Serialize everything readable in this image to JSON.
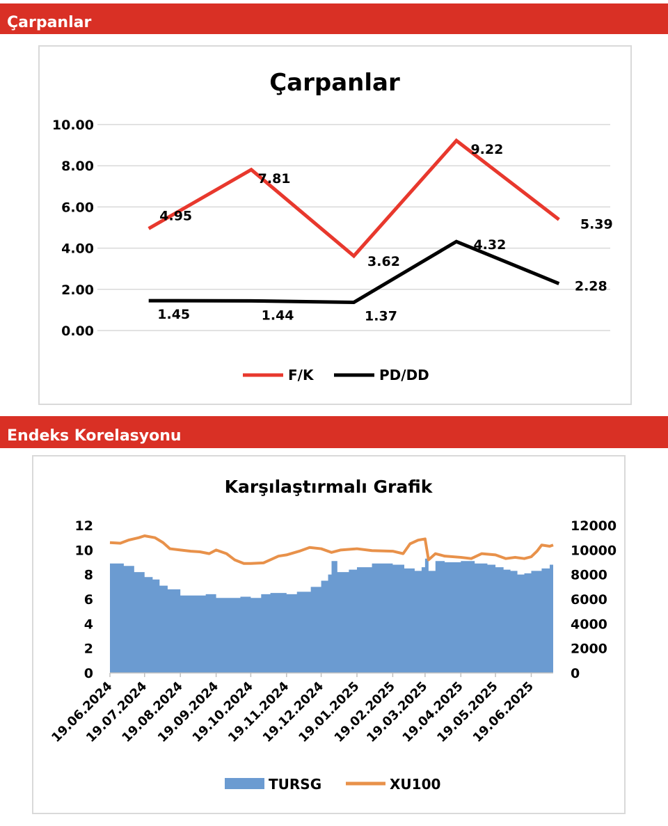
{
  "sections": {
    "multiples_header": "Çarpanlar",
    "index_header": "Endeks Korelasyonu"
  },
  "colors": {
    "header_bg": "#d93025",
    "fk_line": "#e8382d",
    "pddd_line": "#000000",
    "tursg_area": "#6b9bd1",
    "xu100_line": "#e8914a"
  },
  "chart_data": [
    {
      "type": "line",
      "title": "Çarpanlar",
      "ylim": [
        0,
        10
      ],
      "y_ticks": [
        "0.00",
        "2.00",
        "4.00",
        "6.00",
        "8.00",
        "10.00"
      ],
      "grid": true,
      "legend": "bottom",
      "series": [
        {
          "name": "F/K",
          "values": [
            4.95,
            7.81,
            3.62,
            9.22,
            5.39
          ],
          "labels": [
            "4.95",
            "7.81",
            "3.62",
            "9.22",
            "5.39"
          ]
        },
        {
          "name": "PD/DD",
          "values": [
            1.45,
            1.44,
            1.37,
            4.32,
            2.28
          ],
          "labels": [
            "1.45",
            "1.44",
            "1.37",
            "4.32",
            "2.28"
          ]
        }
      ]
    },
    {
      "type": "area",
      "title": "Karşılaştırmalı Grafik",
      "ylim_left": [
        0,
        12
      ],
      "ylim_right": [
        0,
        12000
      ],
      "y_ticks_left": [
        "0",
        "2",
        "4",
        "6",
        "8",
        "10",
        "12"
      ],
      "y_ticks_right": [
        "0",
        "2000",
        "4000",
        "6000",
        "8000",
        "10000",
        "12000"
      ],
      "x_ticks": [
        "19.06.2024",
        "19.07.2024",
        "19.08.2024",
        "19.09.2024",
        "19.10.2024",
        "19.11.2024",
        "19.12.2024",
        "19.01.2025",
        "19.02.2025",
        "19.03.2025",
        "19.04.2025",
        "19.05.2025",
        "19.06.2025"
      ],
      "legend": "bottom",
      "series": [
        {
          "name": "TURSG",
          "axis": "left",
          "type": "area",
          "points": [
            [
              "19.06.2024",
              8.9
            ],
            [
              "01.07.2024",
              8.7
            ],
            [
              "10.07.2024",
              8.2
            ],
            [
              "19.07.2024",
              7.8
            ],
            [
              "26.07.2024",
              7.6
            ],
            [
              "01.08.2024",
              7.1
            ],
            [
              "08.08.2024",
              6.8
            ],
            [
              "19.08.2024",
              6.3
            ],
            [
              "01.09.2024",
              6.3
            ],
            [
              "10.09.2024",
              6.4
            ],
            [
              "19.09.2024",
              6.1
            ],
            [
              "01.10.2024",
              6.1
            ],
            [
              "10.10.2024",
              6.2
            ],
            [
              "19.10.2024",
              6.1
            ],
            [
              "28.10.2024",
              6.4
            ],
            [
              "05.11.2024",
              6.5
            ],
            [
              "19.11.2024",
              6.4
            ],
            [
              "28.11.2024",
              6.6
            ],
            [
              "10.12.2024",
              7.0
            ],
            [
              "19.12.2024",
              7.5
            ],
            [
              "25.12.2024",
              8.0
            ],
            [
              "28.12.2024",
              9.1
            ],
            [
              "02.01.2025",
              8.2
            ],
            [
              "12.01.2025",
              8.4
            ],
            [
              "19.01.2025",
              8.6
            ],
            [
              "01.02.2025",
              8.9
            ],
            [
              "19.02.2025",
              8.8
            ],
            [
              "01.03.2025",
              8.5
            ],
            [
              "10.03.2025",
              8.3
            ],
            [
              "16.03.2025",
              8.6
            ],
            [
              "19.03.2025",
              9.3
            ],
            [
              "22.03.2025",
              8.3
            ],
            [
              "28.03.2025",
              9.1
            ],
            [
              "05.04.2025",
              9.0
            ],
            [
              "19.04.2025",
              9.1
            ],
            [
              "01.05.2025",
              8.9
            ],
            [
              "12.05.2025",
              8.8
            ],
            [
              "19.05.2025",
              8.6
            ],
            [
              "26.05.2025",
              8.4
            ],
            [
              "01.06.2025",
              8.3
            ],
            [
              "07.06.2025",
              8.0
            ],
            [
              "13.06.2025",
              8.1
            ],
            [
              "19.06.2025",
              8.3
            ],
            [
              "28.06.2025",
              8.5
            ],
            [
              "05.07.2025",
              8.8
            ],
            [
              "08.07.2025",
              8.6
            ]
          ]
        },
        {
          "name": "XU100",
          "axis": "right",
          "type": "line",
          "points": [
            [
              "19.06.2024",
              10600
            ],
            [
              "28.06.2024",
              10550
            ],
            [
              "05.07.2024",
              10800
            ],
            [
              "14.07.2024",
              11000
            ],
            [
              "19.07.2024",
              11150
            ],
            [
              "28.07.2024",
              11000
            ],
            [
              "04.08.2024",
              10600
            ],
            [
              "10.08.2024",
              10100
            ],
            [
              "19.08.2024",
              10000
            ],
            [
              "28.08.2024",
              9900
            ],
            [
              "05.09.2024",
              9850
            ],
            [
              "13.09.2024",
              9700
            ],
            [
              "19.09.2024",
              10000
            ],
            [
              "28.09.2024",
              9700
            ],
            [
              "05.10.2024",
              9200
            ],
            [
              "13.10.2024",
              8900
            ],
            [
              "19.10.2024",
              8900
            ],
            [
              "30.10.2024",
              8950
            ],
            [
              "05.11.2024",
              9200
            ],
            [
              "12.11.2024",
              9500
            ],
            [
              "19.11.2024",
              9600
            ],
            [
              "30.11.2024",
              9900
            ],
            [
              "09.12.2024",
              10200
            ],
            [
              "19.12.2024",
              10100
            ],
            [
              "28.12.2024",
              9800
            ],
            [
              "05.01.2025",
              10000
            ],
            [
              "19.01.2025",
              10100
            ],
            [
              "01.02.2025",
              9950
            ],
            [
              "19.02.2025",
              9900
            ],
            [
              "28.02.2025",
              9700
            ],
            [
              "06.03.2025",
              10500
            ],
            [
              "13.03.2025",
              10800
            ],
            [
              "19.03.2025",
              10900
            ],
            [
              "22.03.2025",
              9200
            ],
            [
              "28.03.2025",
              9700
            ],
            [
              "05.04.2025",
              9500
            ],
            [
              "19.04.2025",
              9400
            ],
            [
              "28.04.2025",
              9300
            ],
            [
              "07.05.2025",
              9700
            ],
            [
              "19.05.2025",
              9600
            ],
            [
              "28.05.2025",
              9300
            ],
            [
              "05.06.2025",
              9400
            ],
            [
              "13.06.2025",
              9300
            ],
            [
              "19.06.2025",
              9450
            ],
            [
              "24.06.2025",
              9900
            ],
            [
              "28.06.2025",
              10400
            ],
            [
              "05.07.2025",
              10300
            ],
            [
              "08.07.2025",
              10400
            ]
          ]
        }
      ]
    }
  ]
}
